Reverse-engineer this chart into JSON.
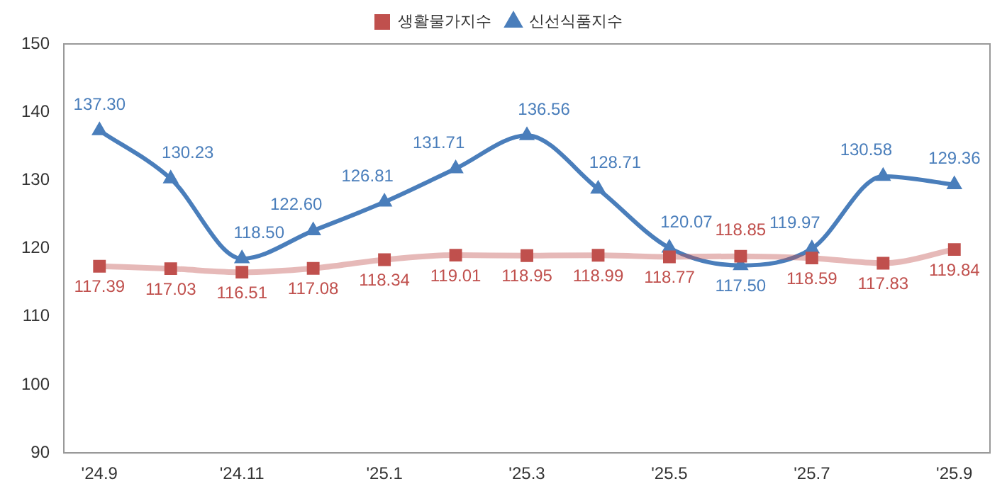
{
  "chart_data": {
    "type": "line",
    "categories": [
      "'24.9",
      null,
      "'24.11",
      null,
      "'25.1",
      null,
      "'25.3",
      null,
      "'25.5",
      null,
      "'25.7",
      null,
      "'25.9"
    ],
    "series": [
      {
        "name": "생활물가지수",
        "color": "#c0504d",
        "marker": "square",
        "values": [
          117.39,
          117.03,
          116.51,
          117.08,
          118.34,
          119.01,
          118.95,
          118.99,
          118.77,
          118.85,
          118.59,
          117.83,
          119.84
        ],
        "value_labels": [
          "117.39",
          "117.03",
          "116.51",
          "117.08",
          "118.34",
          "119.01",
          "118.95",
          "118.99",
          "118.77",
          "118.85",
          "118.59",
          "117.83",
          "119.84"
        ]
      },
      {
        "name": "신선식품지수",
        "color": "#4a7ebb",
        "marker": "triangle",
        "values": [
          137.3,
          130.23,
          118.5,
          122.6,
          126.81,
          131.71,
          136.56,
          128.71,
          120.07,
          117.5,
          119.97,
          130.58,
          129.36
        ],
        "value_labels": [
          "137.30",
          "130.23",
          "118.50",
          "122.60",
          "126.81",
          "131.71",
          "136.56",
          "128.71",
          "120.07",
          "117.50",
          "119.97",
          "130.58",
          "129.36"
        ]
      }
    ],
    "ylim": [
      90,
      150
    ],
    "yticks": [
      90,
      100,
      110,
      120,
      130,
      140,
      150
    ],
    "grid": false,
    "legend": "top"
  }
}
